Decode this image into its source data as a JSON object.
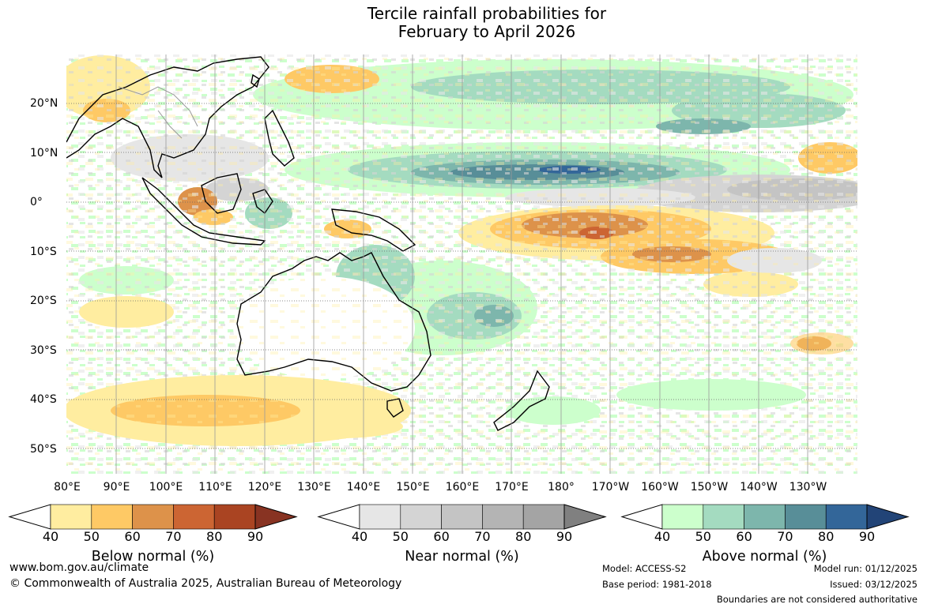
{
  "title_line1": "Tercile rainfall probabilities for",
  "title_line2": "February to April 2026",
  "map": {
    "lon_labels": [
      "80°E",
      "90°E",
      "100°E",
      "110°E",
      "120°E",
      "130°E",
      "140°E",
      "150°E",
      "160°E",
      "170°E",
      "180°",
      "170°W",
      "160°W",
      "150°W",
      "140°W",
      "130°W"
    ],
    "lat_labels": [
      "20°N",
      "10°N",
      "0°",
      "10°S",
      "20°S",
      "30°S",
      "40°S",
      "50°S"
    ]
  },
  "colorbars": [
    {
      "title": "Below normal (%)",
      "ticks": [
        "40",
        "50",
        "60",
        "70",
        "80",
        "90"
      ],
      "colors": [
        "#ffeda0",
        "#fec965",
        "#dd924a",
        "#cc6533",
        "#aa4422",
        "#883322"
      ]
    },
    {
      "title": "Near normal (%)",
      "ticks": [
        "40",
        "50",
        "60",
        "70",
        "80",
        "90"
      ],
      "colors": [
        "#e6e6e6",
        "#d4d4d4",
        "#c4c4c4",
        "#b4b4b4",
        "#a4a4a4",
        "#808080"
      ]
    },
    {
      "title": "Above normal (%)",
      "ticks": [
        "40",
        "50",
        "60",
        "70",
        "80",
        "90"
      ],
      "colors": [
        "#ccffcc",
        "#a4dbc0",
        "#7db6ac",
        "#588e98",
        "#336699",
        "#224477"
      ]
    }
  ],
  "footer": {
    "website": "www.bom.gov.au/climate",
    "copyright": "© Commonwealth of Australia 2025, Australian Bureau of Meteorology",
    "model": "Model: ACCESS-S2",
    "base_period": "Base period: 1981-2018",
    "model_run": "Model run: 01/12/2025",
    "issued": "Issued: 03/12/2025",
    "disclaimer": "Boundaries are not considered authoritative"
  }
}
